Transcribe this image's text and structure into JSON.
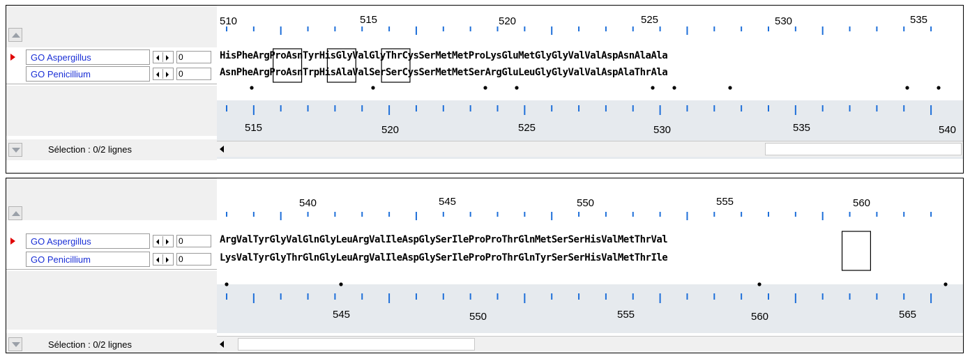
{
  "panels": [
    {
      "top_numbers": [
        "510",
        "515",
        "520",
        "525",
        "530",
        "535"
      ],
      "rows": [
        {
          "name": "GO Aspergillus",
          "value": "0",
          "sequence": "HisPheArgProAsnTyrHisGlyValGlyThrCysSerMetMetProLysGluMetGlyGlyValValAspAsnAlaAla"
        },
        {
          "name": "GO Penicillium",
          "value": "0",
          "sequence": "AsnPheArgProAsnTrpHisAlaValSerSerCysSerMetMetSerArgGluLeuGlyGlyValValAspAlaThrAla"
        }
      ],
      "bottom_numbers": [
        "515",
        "520",
        "525",
        "530",
        "535",
        "540"
      ],
      "status": "Sélection : 0/2 lignes"
    },
    {
      "top_numbers": [
        "540",
        "545",
        "550",
        "555",
        "560"
      ],
      "rows": [
        {
          "name": "GO Aspergillus",
          "value": "0",
          "sequence": "ArgValTyrGlyValGlnGlyLeuArgValIleAspGlySerIleProProThrGlnMetSerSerHisValMetThrVal"
        },
        {
          "name": "GO Penicillium",
          "value": "0",
          "sequence": "LysValTyrGlyThrGlnGlyLeuArgValIleAspGlySerIleProProThrGlnTyrSerSerHisValMetThrIle"
        }
      ],
      "bottom_numbers": [
        "545",
        "550",
        "555",
        "560",
        "565"
      ],
      "status": "Sélection : 0/2 lignes"
    }
  ],
  "colors": {
    "tick": "#1e6fd9",
    "name": "#1a2fd6",
    "marker": "#e00000",
    "band": "#e6eaee"
  }
}
